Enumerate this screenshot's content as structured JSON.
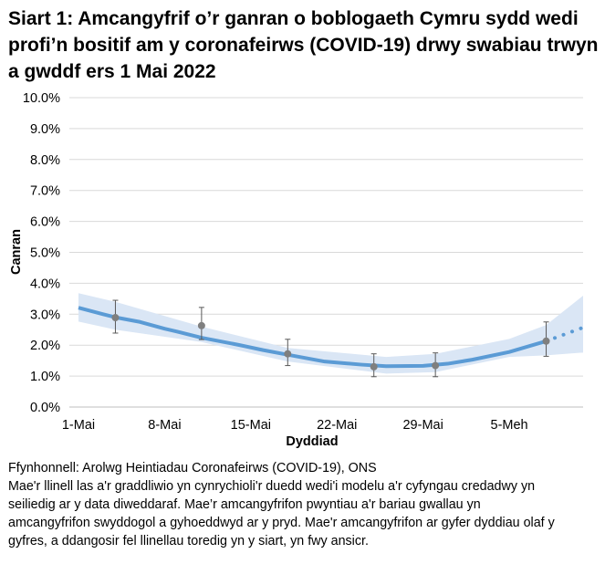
{
  "title": "Siart 1: Amcangyfrif o’r ganran o boblogaeth Cymru sydd wedi profi’n bositif am y coronafeirws (COVID-19) drwy swabiau trwyn a gwddf ers 1 Mai 2022",
  "footer": {
    "source": "Ffynhonnell: Arolwg Heintiadau Coronafeirws (COVID-19), ONS",
    "lines": [
      "Mae'r llinell las a'r graddliwio yn cynrychioli'r duedd wedi'i modelu a'r cyfyngau credadwy yn",
      "seiliedig ar y data diweddaraf. Mae’r amcangyfrifon pwyntiau a'r bariau gwallau yn",
      "amcangyfrifon swyddogol a gyhoeddwyd ar y pryd. Mae'r amcangyfrifon ar gyfer dyddiau olaf y",
      "gyfres, a ddangosir fel llinellau toredig yn y siart, yn fwy ansicr."
    ]
  },
  "chart_data": {
    "type": "line",
    "title": "",
    "xlabel": "Dyddiad",
    "ylabel": "Canran",
    "ylim": [
      0,
      10
    ],
    "yticks": [
      "0.0%",
      "1.0%",
      "2.0%",
      "3.0%",
      "4.0%",
      "5.0%",
      "6.0%",
      "7.0%",
      "8.0%",
      "9.0%",
      "10.0%"
    ],
    "xticks": [
      "1-Mai",
      "8-Mai",
      "15-Mai",
      "22-Mai",
      "29-Mai",
      "5-Meh"
    ],
    "grid": true,
    "colors": {
      "line": "#5b9bd5",
      "band": "#dae6f5",
      "points": "#7f7f7f",
      "grid": "#d9d9d9"
    },
    "date_index": [
      "1-Mai",
      "2-Mai",
      "3-Mai",
      "4-Mai",
      "5-Mai",
      "6-Mai",
      "7-Mai",
      "8-Mai",
      "9-Mai",
      "10-Mai",
      "11-Mai",
      "12-Mai",
      "13-Mai",
      "14-Mai",
      "15-Mai",
      "16-Mai",
      "17-Mai",
      "18-Mai",
      "19-Mai",
      "20-Mai",
      "21-Mai",
      "22-Mai",
      "23-Mai",
      "24-Mai",
      "25-Mai",
      "26-Mai",
      "27-Mai",
      "28-Mai",
      "29-Mai",
      "30-Mai",
      "31-Mai",
      "1-Meh",
      "2-Meh",
      "3-Meh",
      "4-Meh",
      "5-Meh",
      "6-Meh",
      "7-Meh",
      "8-Meh",
      "9-Meh",
      "10-Meh",
      "11-Meh"
    ],
    "modelled_trend": {
      "x": [
        "1-Mai",
        "3-Mai",
        "4-Mai",
        "6-Mai",
        "8-Mai",
        "9-Mai",
        "11-Mai",
        "14-Mai",
        "16-Mai",
        "18-Mai",
        "21-Mai",
        "24-Mai",
        "26-Mai",
        "29-Mai",
        "31-Mai",
        "2-Meh",
        "5-Meh",
        "8-Meh",
        "11-Meh"
      ],
      "y": [
        3.21,
        3.0,
        2.9,
        2.75,
        2.53,
        2.44,
        2.24,
        2.01,
        1.84,
        1.69,
        1.47,
        1.37,
        1.32,
        1.33,
        1.4,
        1.53,
        1.78,
        2.13,
        2.57
      ],
      "dotted_from": "8-Meh"
    },
    "credible_interval": {
      "x": [
        "1-Mai",
        "4-Mai",
        "11-Mai",
        "18-Mai",
        "26-Mai",
        "30-Mai",
        "5-Meh",
        "8-Meh",
        "11-Meh"
      ],
      "upper": [
        3.68,
        3.4,
        2.6,
        1.91,
        1.62,
        1.72,
        2.2,
        2.65,
        3.6
      ],
      "lower": [
        2.76,
        2.5,
        2.1,
        1.47,
        1.08,
        1.13,
        1.62,
        1.67,
        1.76
      ]
    },
    "official_estimates": {
      "x": [
        "4-Mai",
        "11-Mai",
        "18-Mai",
        "25-Mai",
        "30-Mai",
        "8-Meh"
      ],
      "y": [
        2.89,
        2.63,
        1.72,
        1.3,
        1.34,
        2.13
      ],
      "lower": [
        2.39,
        2.18,
        1.34,
        0.98,
        0.98,
        1.64
      ],
      "upper": [
        3.45,
        3.22,
        2.19,
        1.72,
        1.75,
        2.75
      ]
    }
  }
}
